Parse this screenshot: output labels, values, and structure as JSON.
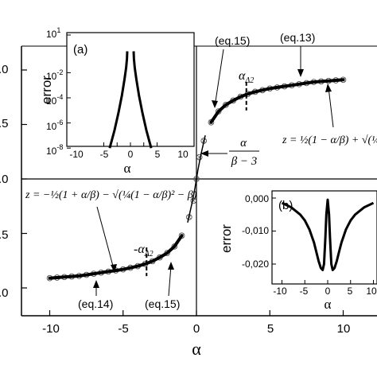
{
  "chart_data": [
    {
      "type": "line",
      "panel": "main",
      "xlabel": "α",
      "ylabel": "",
      "xlim": [
        -12.5,
        11.5
      ],
      "ylim": [
        -1.12,
        1.22
      ],
      "x_ticks": [
        "-10",
        "-5",
        "0",
        "5",
        "10"
      ],
      "x_tick_values": [
        -10,
        -5,
        0,
        5,
        10
      ],
      "y_ticks": [
        ".0",
        ".5",
        ".0",
        ".5",
        ".0"
      ],
      "y_tick_values": [
        -1.0,
        -0.5,
        0.0,
        0.5,
        1.0
      ],
      "grid": false,
      "series": [
        {
          "kind": "markers",
          "x": [
            -10,
            -9.5,
            -9,
            -8.5,
            -8,
            -7.5,
            -7,
            -6.5,
            -6,
            -5.5,
            -5,
            -4.5,
            -4,
            -3.5,
            -3,
            -2.5,
            -2,
            -1.5,
            -1,
            -0.5,
            -0.2,
            0,
            0.2,
            0.5,
            1,
            1.5,
            2,
            2.5,
            3,
            3.5,
            4,
            4.5,
            5,
            5.5,
            6,
            6.5,
            7,
            7.5,
            8,
            8.5,
            9,
            9.5,
            10
          ],
          "y": [
            -0.91,
            -0.905,
            -0.9,
            -0.895,
            -0.89,
            -0.88,
            -0.87,
            -0.86,
            -0.85,
            -0.84,
            -0.83,
            -0.815,
            -0.8,
            -0.78,
            -0.755,
            -0.72,
            -0.68,
            -0.62,
            -0.52,
            -0.35,
            -0.2,
            0.0,
            0.2,
            0.35,
            0.52,
            0.62,
            0.68,
            0.72,
            0.755,
            0.78,
            0.8,
            0.815,
            0.83,
            0.84,
            0.85,
            0.86,
            0.87,
            0.88,
            0.89,
            0.895,
            0.9,
            0.905,
            0.91
          ]
        },
        {
          "kind": "thick-line-positive",
          "x": [
            1,
            1.5,
            2,
            2.5,
            3,
            3.5,
            4,
            4.5,
            5,
            5.5,
            6,
            6.5,
            7,
            7.5,
            8,
            8.5,
            9,
            9.5,
            10
          ],
          "y": [
            0.52,
            0.62,
            0.68,
            0.72,
            0.755,
            0.78,
            0.8,
            0.815,
            0.83,
            0.84,
            0.85,
            0.86,
            0.87,
            0.88,
            0.89,
            0.895,
            0.9,
            0.905,
            0.91
          ]
        },
        {
          "kind": "thick-line-negative",
          "x": [
            -10,
            -9.5,
            -9,
            -8.5,
            -8,
            -7.5,
            -7,
            -6.5,
            -6,
            -5.5,
            -5,
            -4.5,
            -4,
            -3.5,
            -3,
            -2.5,
            -2,
            -1.5,
            -1
          ],
          "y": [
            -0.91,
            -0.905,
            -0.9,
            -0.895,
            -0.89,
            -0.88,
            -0.87,
            -0.86,
            -0.85,
            -0.84,
            -0.83,
            -0.815,
            -0.8,
            -0.78,
            -0.755,
            -0.72,
            -0.68,
            -0.62,
            -0.52
          ]
        },
        {
          "kind": "thin-line-center",
          "x": [
            -0.6,
            -0.3,
            -0.1,
            0,
            0.1,
            0.3,
            0.6
          ],
          "y": [
            -0.4,
            -0.22,
            -0.08,
            0.0,
            0.08,
            0.22,
            0.4
          ]
        }
      ],
      "markers": [
        {
          "label": "α_Δ2",
          "x": 3.4,
          "y": 0.76
        },
        {
          "label": "-α_Δ2",
          "x": -3.4,
          "y": -0.76
        }
      ],
      "annotations": {
        "eq15_top": "(eq.15)",
        "eq13": "(eq.13)",
        "alpha_delta2": "α",
        "alpha_delta2_sub": "Δ2",
        "neg_alpha_delta2": "-α",
        "neg_alpha_delta2_sub": "Δ2",
        "eq14": "(eq.14)",
        "eq15_bottom": "(eq.15)",
        "formula_mid_num": "α",
        "formula_mid_den": "β − 3",
        "formula_right": "z = ½(1 − α/β) + √(¼(",
        "formula_left": "z = −½(1 + α/β) − √(¼(1 − α/β)² − β)"
      }
    },
    {
      "type": "line",
      "panel": "inset-a",
      "panel_label": "(a)",
      "xlabel": "α",
      "ylabel": "error",
      "scale": "log",
      "xlim": [
        -12,
        12
      ],
      "ylim_log10": [
        -8,
        1
      ],
      "x_ticks": [
        "-10",
        "-5",
        "0",
        "5",
        "10"
      ],
      "x_tick_values": [
        -10,
        -5,
        0,
        5,
        10
      ],
      "y_ticks_base": [
        "10",
        "10",
        "10",
        "10",
        "10"
      ],
      "y_ticks_exp": [
        "1",
        "-2",
        "-4",
        "-6",
        "-8"
      ],
      "y_tick_log_values": [
        1,
        -2,
        -4,
        -6,
        -8
      ],
      "series": [
        {
          "x": [
            -7.8,
            -6,
            -4.5,
            -3.2,
            -2.2,
            -1.6,
            -1.3,
            -1.2
          ],
          "log10_y": [
            -8,
            -6.6,
            -5.2,
            -3.8,
            -2.5,
            -1.6,
            -0.9,
            -0.3
          ]
        },
        {
          "x": [
            1.2,
            1.3,
            1.6,
            2.2,
            3.2,
            4.5,
            6,
            7.8
          ],
          "log10_y": [
            -0.3,
            -0.9,
            -1.6,
            -2.5,
            -3.8,
            -5.2,
            -6.6,
            -8
          ]
        }
      ]
    },
    {
      "type": "line",
      "panel": "inset-b",
      "panel_label": "(b)",
      "xlabel": "α",
      "ylabel": "error",
      "xlim": [
        -11,
        11
      ],
      "ylim": [
        -0.026,
        0.002
      ],
      "x_ticks": [
        "-10",
        "-5",
        "0",
        "5",
        "10"
      ],
      "x_tick_values": [
        -10,
        -5,
        0,
        5,
        10
      ],
      "y_ticks": [
        "0,000",
        "-0,010",
        "-0,020"
      ],
      "y_tick_values": [
        0.0,
        -0.01,
        -0.02
      ],
      "series": [
        {
          "x": [
            -10,
            -8,
            -6,
            -5,
            -4,
            -3,
            -2.5,
            -2,
            -1.5,
            -1.1,
            -0.8,
            -0.5,
            -0.3,
            0,
            0.3,
            0.5,
            0.8,
            1.1,
            1.5,
            2,
            2.5,
            3,
            4,
            5,
            6,
            8,
            10
          ],
          "y": [
            -0.0015,
            -0.0028,
            -0.005,
            -0.0068,
            -0.0095,
            -0.0135,
            -0.0162,
            -0.019,
            -0.0212,
            -0.0218,
            -0.02,
            -0.012,
            -0.005,
            -0.0005,
            -0.005,
            -0.012,
            -0.02,
            -0.0218,
            -0.0212,
            -0.019,
            -0.0162,
            -0.0135,
            -0.0095,
            -0.0068,
            -0.005,
            -0.0028,
            -0.0015
          ]
        }
      ]
    }
  ]
}
